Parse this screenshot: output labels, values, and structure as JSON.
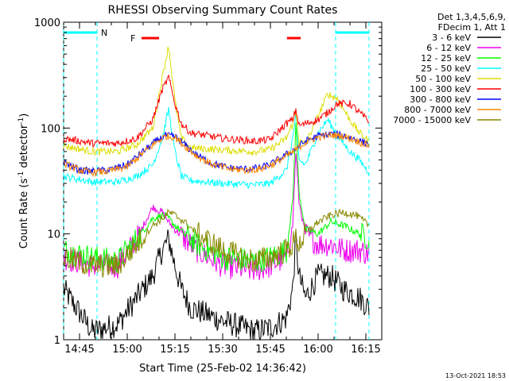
{
  "chart_data": {
    "type": "line",
    "title": "RHESSI Observing Summary Count Rates",
    "xlabel": "Start Time (25-Feb-02 14:36:42)",
    "ylabel": "Count Rate (s",
    "ylabel_sup": "-1",
    "ylabel_tail": " detector",
    "ylabel_tail_sup": "-1",
    "ylabel_end": ")",
    "ylim": [
      1,
      1000
    ],
    "yscale": "log",
    "x_range_minutes": [
      880,
      980
    ],
    "x_ticks": [
      {
        "m": 885,
        "label": "14:45"
      },
      {
        "m": 900,
        "label": "15:00"
      },
      {
        "m": 915,
        "label": "15:15"
      },
      {
        "m": 930,
        "label": "15:30"
      },
      {
        "m": 945,
        "label": "15:45"
      },
      {
        "m": 960,
        "label": "16:00"
      },
      {
        "m": 975,
        "label": "16:15"
      }
    ],
    "y_ticks": [
      {
        "v": 1,
        "label": "1"
      },
      {
        "v": 10,
        "label": "10"
      },
      {
        "v": 100,
        "label": "100"
      },
      {
        "v": 1000,
        "label": "1000"
      }
    ],
    "legend_header": [
      "Det 1,3,4,5,6,9,",
      "FDecim 1, Att 1"
    ],
    "series": [
      {
        "name": "3 - 6 keV",
        "color": "#000000",
        "points": [
          [
            880,
            3
          ],
          [
            889,
            1.2
          ],
          [
            897,
            1.4
          ],
          [
            903,
            2.5
          ],
          [
            908,
            4
          ],
          [
            911,
            7
          ],
          [
            913,
            9
          ],
          [
            915,
            5
          ],
          [
            917,
            3
          ],
          [
            920,
            2
          ],
          [
            930,
            1.5
          ],
          [
            940,
            1.2
          ],
          [
            945,
            1.3
          ],
          [
            950,
            1.6
          ],
          [
            952,
            3
          ],
          [
            953,
            9
          ],
          [
            954,
            4
          ],
          [
            956,
            2.5
          ],
          [
            960,
            4
          ],
          [
            964,
            4
          ],
          [
            968,
            3
          ],
          [
            973,
            2.5
          ],
          [
            976,
            2
          ]
        ]
      },
      {
        "name": "6 - 12 keV",
        "color": "#ee00ee",
        "points": [
          [
            880,
            6
          ],
          [
            889,
            5
          ],
          [
            897,
            5
          ],
          [
            903,
            9
          ],
          [
            908,
            18
          ],
          [
            911,
            16
          ],
          [
            913,
            13
          ],
          [
            915,
            11
          ],
          [
            918,
            9
          ],
          [
            922,
            7
          ],
          [
            930,
            5
          ],
          [
            940,
            4.5
          ],
          [
            945,
            5
          ],
          [
            950,
            6
          ],
          [
            952,
            12
          ],
          [
            953,
            60
          ],
          [
            954,
            20
          ],
          [
            956,
            10
          ],
          [
            960,
            8
          ],
          [
            964,
            8
          ],
          [
            968,
            7
          ],
          [
            973,
            7
          ],
          [
            976,
            6.5
          ]
        ]
      },
      {
        "name": "12 - 25 keV",
        "color": "#00ff00",
        "points": [
          [
            880,
            7
          ],
          [
            889,
            6
          ],
          [
            897,
            5.5
          ],
          [
            903,
            9
          ],
          [
            908,
            14
          ],
          [
            911,
            15
          ],
          [
            913,
            14
          ],
          [
            915,
            12
          ],
          [
            918,
            10
          ],
          [
            922,
            8
          ],
          [
            930,
            6
          ],
          [
            940,
            5.5
          ],
          [
            945,
            6
          ],
          [
            950,
            7
          ],
          [
            952,
            20
          ],
          [
            953,
            110
          ],
          [
            954,
            25
          ],
          [
            956,
            11
          ],
          [
            960,
            10
          ],
          [
            964,
            13
          ],
          [
            968,
            12
          ],
          [
            973,
            10
          ],
          [
            976,
            9
          ]
        ]
      },
      {
        "name": "25 - 50 keV",
        "color": "#00ffff",
        "points": [
          [
            880,
            35
          ],
          [
            889,
            31
          ],
          [
            897,
            31
          ],
          [
            903,
            35
          ],
          [
            908,
            45
          ],
          [
            911,
            80
          ],
          [
            913,
            150
          ],
          [
            915,
            60
          ],
          [
            917,
            35
          ],
          [
            920,
            32
          ],
          [
            930,
            30
          ],
          [
            940,
            29
          ],
          [
            945,
            30
          ],
          [
            950,
            40
          ],
          [
            952,
            80
          ],
          [
            953,
            130
          ],
          [
            954,
            50
          ],
          [
            956,
            45
          ],
          [
            960,
            90
          ],
          [
            963,
            120
          ],
          [
            966,
            85
          ],
          [
            970,
            60
          ],
          [
            973,
            50
          ],
          [
            976,
            38
          ]
        ]
      },
      {
        "name": "50 - 100 keV",
        "color": "#dddd00",
        "points": [
          [
            880,
            68
          ],
          [
            889,
            60
          ],
          [
            897,
            60
          ],
          [
            903,
            70
          ],
          [
            908,
            100
          ],
          [
            911,
            300
          ],
          [
            913,
            600
          ],
          [
            915,
            180
          ],
          [
            917,
            80
          ],
          [
            920,
            65
          ],
          [
            930,
            62
          ],
          [
            940,
            60
          ],
          [
            945,
            63
          ],
          [
            950,
            80
          ],
          [
            952,
            110
          ],
          [
            953,
            140
          ],
          [
            954,
            75
          ],
          [
            956,
            70
          ],
          [
            960,
            130
          ],
          [
            963,
            210
          ],
          [
            966,
            190
          ],
          [
            970,
            120
          ],
          [
            973,
            90
          ],
          [
            976,
            75
          ]
        ]
      },
      {
        "name": "100 - 300 keV",
        "color": "#ff0000",
        "points": [
          [
            880,
            80
          ],
          [
            889,
            72
          ],
          [
            897,
            72
          ],
          [
            903,
            80
          ],
          [
            908,
            120
          ],
          [
            911,
            230
          ],
          [
            913,
            300
          ],
          [
            915,
            170
          ],
          [
            917,
            110
          ],
          [
            920,
            90
          ],
          [
            930,
            80
          ],
          [
            940,
            75
          ],
          [
            945,
            78
          ],
          [
            947,
            90
          ],
          [
            950,
            110
          ],
          [
            952,
            120
          ],
          [
            953,
            150
          ],
          [
            954,
            105
          ],
          [
            956,
            110
          ],
          [
            960,
            120
          ],
          [
            963,
            140
          ],
          [
            966,
            170
          ],
          [
            970,
            170
          ],
          [
            973,
            140
          ],
          [
            976,
            115
          ]
        ]
      },
      {
        "name": "300 - 800 keV",
        "color": "#0000ff",
        "points": [
          [
            880,
            48
          ],
          [
            885,
            40
          ],
          [
            889,
            39
          ],
          [
            894,
            40
          ],
          [
            900,
            45
          ],
          [
            905,
            60
          ],
          [
            909,
            75
          ],
          [
            912,
            85
          ],
          [
            915,
            83
          ],
          [
            918,
            70
          ],
          [
            922,
            55
          ],
          [
            927,
            46
          ],
          [
            932,
            42
          ],
          [
            937,
            41
          ],
          [
            942,
            42
          ],
          [
            946,
            47
          ],
          [
            950,
            56
          ],
          [
            953,
            64
          ],
          [
            956,
            75
          ],
          [
            960,
            84
          ],
          [
            964,
            88
          ],
          [
            968,
            85
          ],
          [
            972,
            78
          ],
          [
            976,
            70
          ]
        ]
      },
      {
        "name": "800 - 7000 keV",
        "color": "#ff8800",
        "points": [
          [
            880,
            46
          ],
          [
            885,
            40
          ],
          [
            889,
            38
          ],
          [
            894,
            39
          ],
          [
            900,
            43
          ],
          [
            905,
            58
          ],
          [
            909,
            73
          ],
          [
            912,
            84
          ],
          [
            915,
            82
          ],
          [
            918,
            68
          ],
          [
            922,
            54
          ],
          [
            927,
            45
          ],
          [
            932,
            41
          ],
          [
            937,
            40
          ],
          [
            942,
            41
          ],
          [
            946,
            46
          ],
          [
            950,
            54
          ],
          [
            953,
            62
          ],
          [
            956,
            73
          ],
          [
            960,
            82
          ],
          [
            964,
            86
          ],
          [
            968,
            84
          ],
          [
            972,
            76
          ],
          [
            976,
            68
          ]
        ]
      },
      {
        "name": "7000 - 15000 keV",
        "color": "#888800",
        "points": [
          [
            880,
            6
          ],
          [
            889,
            5
          ],
          [
            897,
            5
          ],
          [
            903,
            8
          ],
          [
            908,
            12
          ],
          [
            911,
            14
          ],
          [
            913,
            16
          ],
          [
            915,
            15
          ],
          [
            918,
            13
          ],
          [
            922,
            10
          ],
          [
            930,
            7
          ],
          [
            940,
            5.5
          ],
          [
            945,
            6
          ],
          [
            950,
            7
          ],
          [
            952,
            8
          ],
          [
            953,
            9
          ],
          [
            954,
            8
          ],
          [
            956,
            10
          ],
          [
            960,
            13
          ],
          [
            964,
            15
          ],
          [
            968,
            16
          ],
          [
            972,
            15
          ],
          [
            976,
            12
          ]
        ]
      }
    ],
    "annotations": {
      "n_label": "N",
      "f_label": "F",
      "n_bars": [
        [
          880,
          890.5
        ],
        [
          965.5,
          976
        ]
      ],
      "n_lines": [
        880,
        890.5,
        965.5,
        976
      ],
      "f_bars": [
        [
          904.5,
          910
        ],
        [
          950.2,
          954.5
        ]
      ],
      "colors": {
        "n": "#00ffff",
        "f": "#ff0000"
      }
    }
  },
  "footer": {
    "date": "13-Oct-2021 18:53"
  }
}
